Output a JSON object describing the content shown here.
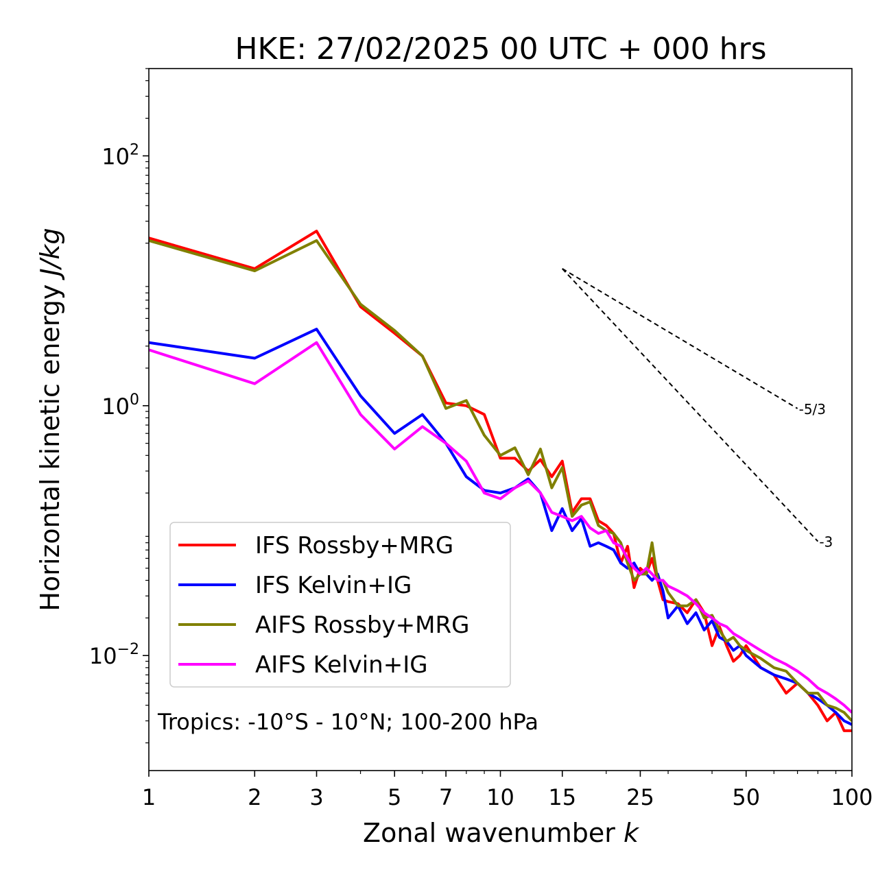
{
  "chart_data": {
    "type": "line",
    "title": "HKE: 27/02/2025 00 UTC + 000 hrs",
    "xlabel": "Zonal wavenumber ",
    "xlabel_italic": "k",
    "ylabel": "Horizontal kinetic energy ",
    "ylabel_italic": "J/kg",
    "xscale": "log",
    "yscale": "log",
    "xlim": [
      1,
      100
    ],
    "ylim": [
      0.0012,
      500
    ],
    "x_ticks": [
      1,
      2,
      3,
      5,
      7,
      10,
      15,
      25,
      50,
      100
    ],
    "x_tick_labels": [
      "1",
      "2",
      "3",
      "5",
      "7",
      "10",
      "15",
      "25",
      "50",
      "100"
    ],
    "y_ticks": [
      {
        "value": 100,
        "base": "10",
        "exp": "2"
      },
      {
        "value": 1,
        "base": "10",
        "exp": "0"
      },
      {
        "value": 0.01,
        "base": "10",
        "exp": "−2"
      }
    ],
    "legend_position": "lower-left",
    "annotation": "Tropics: -10°S - 10°N; 100-200 hPa",
    "reference_lines": [
      {
        "label": "-5/3",
        "slope": -1.6667,
        "x": [
          15,
          70
        ],
        "y": [
          12.5,
          0.95
        ]
      },
      {
        "label": "-3",
        "slope": -3,
        "x": [
          15,
          80
        ],
        "y": [
          12.5,
          0.082
        ]
      }
    ],
    "series": [
      {
        "name": "IFS Rossby+MRG",
        "color": "#ff0000",
        "x": [
          1,
          2,
          3,
          4,
          5,
          6,
          7,
          8,
          9,
          10,
          11,
          12,
          13,
          14,
          15,
          16,
          17,
          18,
          19,
          20,
          21,
          22,
          23,
          24,
          25,
          26,
          27,
          28,
          29,
          30,
          32,
          34,
          36,
          38,
          40,
          42,
          44,
          46,
          48,
          50,
          55,
          60,
          65,
          70,
          75,
          80,
          85,
          90,
          95,
          100
        ],
        "y": [
          22,
          12.5,
          25,
          6.2,
          3.8,
          2.5,
          1.05,
          1.0,
          0.85,
          0.38,
          0.38,
          0.3,
          0.37,
          0.27,
          0.36,
          0.14,
          0.18,
          0.18,
          0.12,
          0.11,
          0.095,
          0.055,
          0.075,
          0.035,
          0.05,
          0.045,
          0.06,
          0.04,
          0.028,
          0.027,
          0.026,
          0.022,
          0.028,
          0.022,
          0.012,
          0.017,
          0.012,
          0.009,
          0.01,
          0.012,
          0.008,
          0.007,
          0.005,
          0.006,
          0.005,
          0.004,
          0.003,
          0.0035,
          0.0025,
          0.0025
        ]
      },
      {
        "name": "IFS Kelvin+IG",
        "color": "#0000ff",
        "x": [
          1,
          2,
          3,
          4,
          5,
          6,
          7,
          8,
          9,
          10,
          11,
          12,
          13,
          14,
          15,
          16,
          17,
          18,
          19,
          20,
          21,
          22,
          23,
          24,
          25,
          26,
          27,
          28,
          29,
          30,
          32,
          34,
          36,
          38,
          40,
          42,
          44,
          46,
          48,
          50,
          55,
          60,
          65,
          70,
          75,
          80,
          85,
          90,
          95,
          100
        ],
        "y": [
          3.2,
          2.4,
          4.1,
          1.2,
          0.6,
          0.85,
          0.5,
          0.27,
          0.21,
          0.2,
          0.22,
          0.26,
          0.2,
          0.1,
          0.15,
          0.1,
          0.125,
          0.075,
          0.08,
          0.075,
          0.07,
          0.055,
          0.05,
          0.055,
          0.045,
          0.045,
          0.04,
          0.045,
          0.033,
          0.02,
          0.025,
          0.018,
          0.022,
          0.016,
          0.019,
          0.014,
          0.013,
          0.011,
          0.012,
          0.01,
          0.008,
          0.007,
          0.0065,
          0.006,
          0.005,
          0.0045,
          0.004,
          0.0035,
          0.003,
          0.0028
        ]
      },
      {
        "name": "AIFS Rossby+MRG",
        "color": "#808000",
        "x": [
          1,
          2,
          3,
          4,
          5,
          6,
          7,
          8,
          9,
          10,
          11,
          12,
          13,
          14,
          15,
          16,
          17,
          18,
          19,
          20,
          21,
          22,
          23,
          24,
          25,
          26,
          27,
          28,
          29,
          30,
          32,
          34,
          36,
          38,
          40,
          42,
          44,
          46,
          48,
          50,
          55,
          60,
          65,
          70,
          75,
          80,
          85,
          90,
          95,
          100
        ],
        "y": [
          21,
          12,
          21,
          6.5,
          4.0,
          2.5,
          0.95,
          1.1,
          0.58,
          0.4,
          0.46,
          0.28,
          0.45,
          0.22,
          0.32,
          0.13,
          0.16,
          0.17,
          0.11,
          0.1,
          0.095,
          0.08,
          0.055,
          0.04,
          0.045,
          0.045,
          0.08,
          0.04,
          0.04,
          0.032,
          0.025,
          0.025,
          0.028,
          0.02,
          0.021,
          0.016,
          0.013,
          0.014,
          0.012,
          0.011,
          0.0095,
          0.008,
          0.0075,
          0.006,
          0.005,
          0.005,
          0.004,
          0.0038,
          0.0035,
          0.003
        ]
      },
      {
        "name": "AIFS Kelvin+IG",
        "color": "#ff00ff",
        "x": [
          1,
          2,
          3,
          4,
          5,
          6,
          7,
          8,
          9,
          10,
          11,
          12,
          13,
          14,
          15,
          16,
          17,
          18,
          19,
          20,
          21,
          22,
          23,
          24,
          25,
          26,
          27,
          28,
          29,
          30,
          32,
          34,
          36,
          38,
          40,
          42,
          44,
          46,
          48,
          50,
          55,
          60,
          65,
          70,
          75,
          80,
          85,
          90,
          95,
          100
        ],
        "y": [
          2.8,
          1.5,
          3.2,
          0.85,
          0.45,
          0.68,
          0.5,
          0.36,
          0.2,
          0.18,
          0.22,
          0.25,
          0.2,
          0.14,
          0.13,
          0.12,
          0.13,
          0.105,
          0.095,
          0.1,
          0.08,
          0.075,
          0.06,
          0.05,
          0.045,
          0.05,
          0.045,
          0.04,
          0.04,
          0.036,
          0.033,
          0.03,
          0.026,
          0.022,
          0.02,
          0.018,
          0.017,
          0.015,
          0.014,
          0.013,
          0.011,
          0.0095,
          0.0085,
          0.0075,
          0.0065,
          0.0055,
          0.005,
          0.0045,
          0.004,
          0.0035
        ]
      }
    ]
  }
}
